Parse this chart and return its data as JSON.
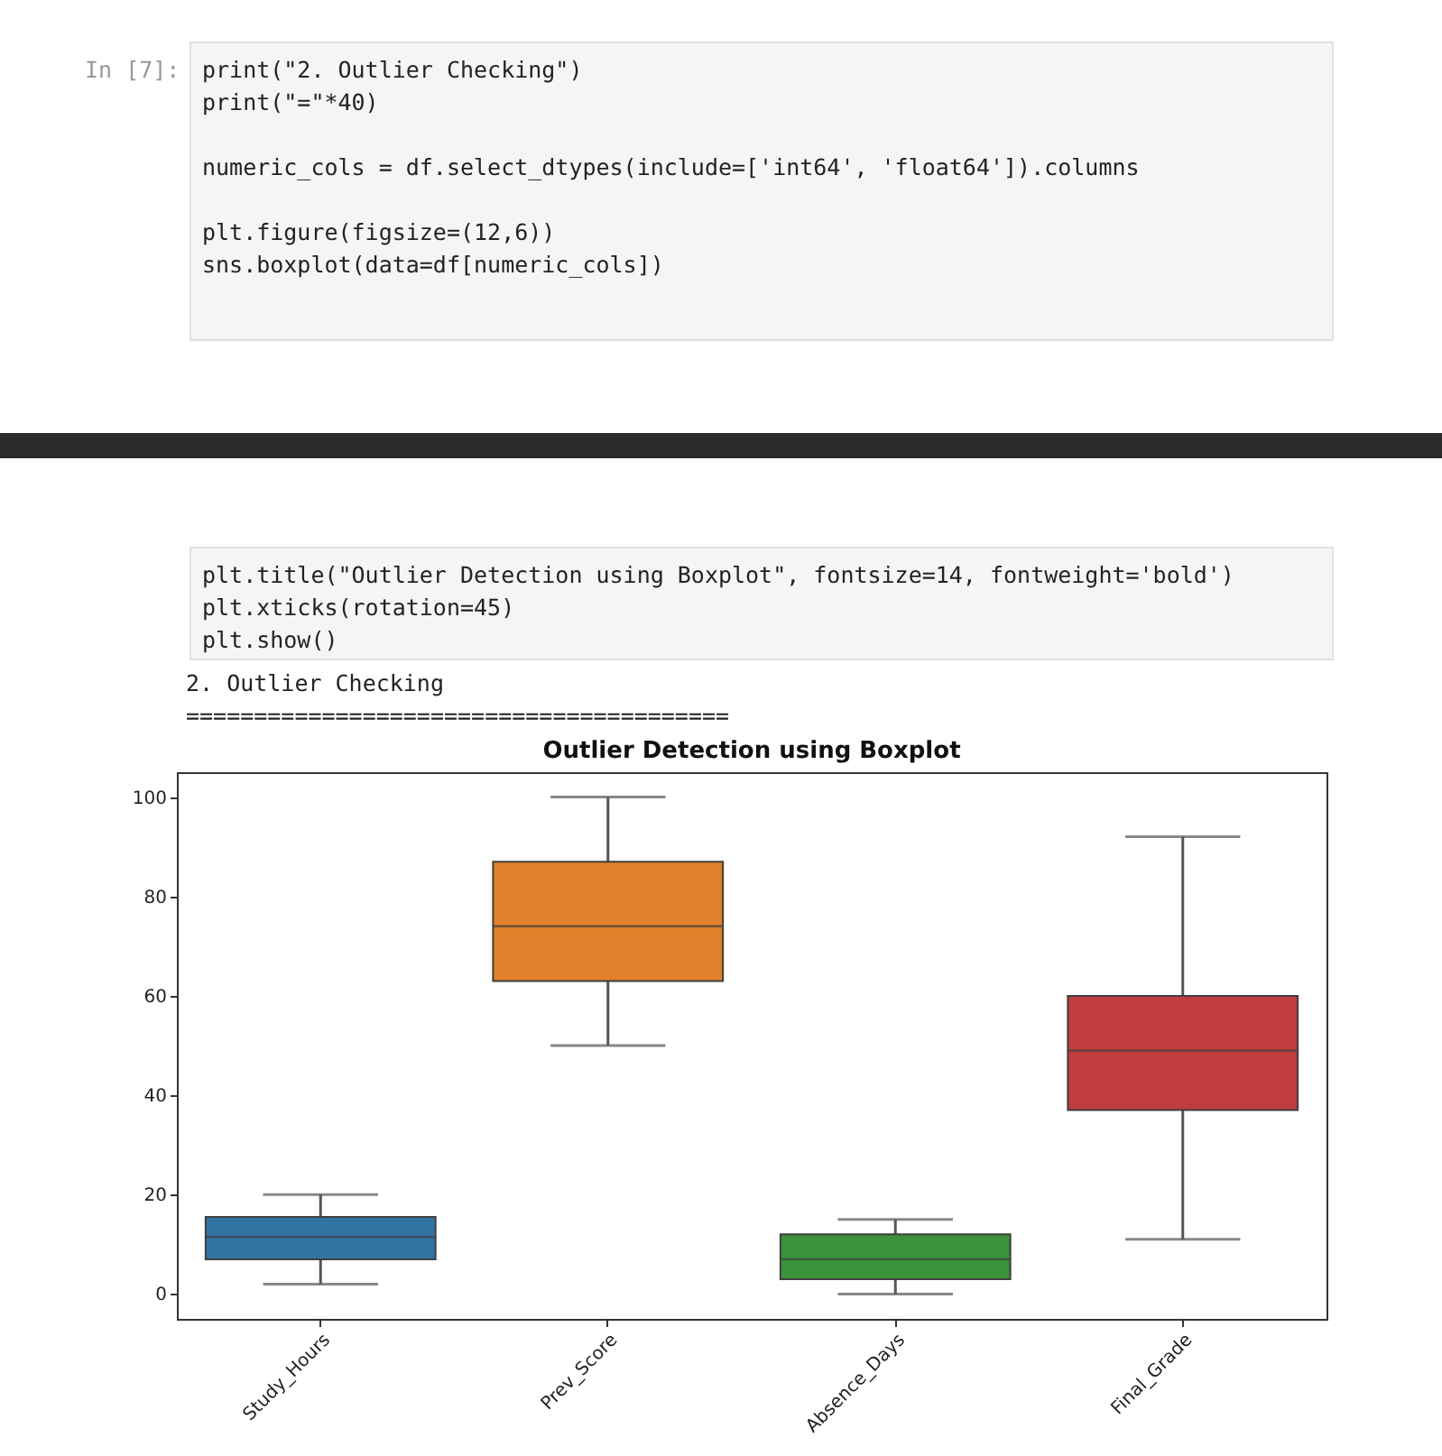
{
  "chart_data": {
    "type": "box",
    "title": "Outlier Detection using Boxplot",
    "categories": [
      "Study_Hours",
      "Prev_Score",
      "Absence_Days",
      "Final_Grade"
    ],
    "series": [
      {
        "colors": [
          "#3274a1",
          "#e1812c",
          "#3a923a",
          "#c03d3e"
        ],
        "boxes": [
          {
            "low": 2,
            "q1": 7,
            "median": 11.5,
            "q3": 15.5,
            "high": 20
          },
          {
            "low": 50,
            "q1": 63,
            "median": 74,
            "q3": 87,
            "high": 100
          },
          {
            "low": 0,
            "q1": 3,
            "median": 7,
            "q3": 12,
            "high": 15
          },
          {
            "low": 11,
            "q1": 37,
            "median": 49,
            "q3": 60,
            "high": 92
          }
        ]
      }
    ],
    "ylim": [
      -5,
      105
    ],
    "yticks": [
      0,
      20,
      40,
      60,
      80,
      100
    ],
    "grid": false,
    "annotations": [
      "In [7]:",
      "print(\"2. Outlier Checking\")\nprint(\"=\"*40)\n\nnumeric_cols = df.select_dtypes(include=['int64', 'float64']).columns\n\nplt.figure(figsize=(12,6))\nsns.boxplot(data=df[numeric_cols])",
      "plt.title(\"Outlier Detection using Boxplot\", fontsize=14, fontweight='bold')\nplt.xticks(rotation=45)\nplt.show()",
      "2. Outlier Checking\n========================================"
    ]
  }
}
